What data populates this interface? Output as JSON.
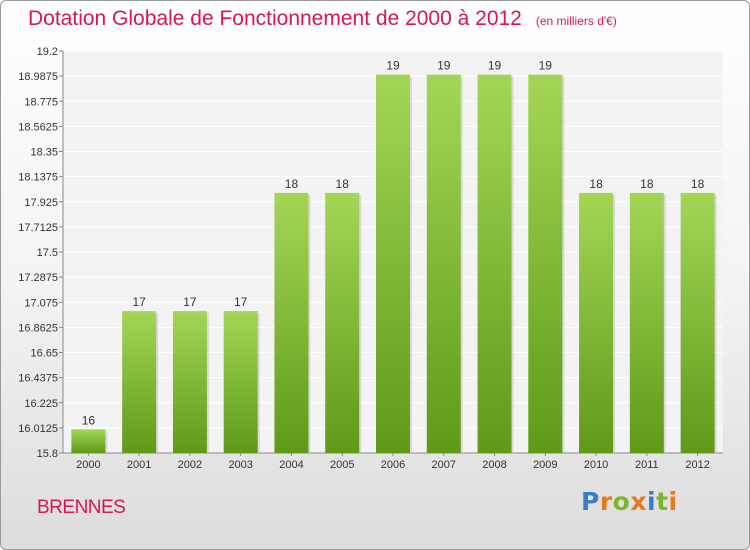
{
  "header": {
    "title": "Dotation Globale de Fonctionnement de 2000 à 2012",
    "unit": "(en milliers d'€)"
  },
  "footer": {
    "commune": "BRENNES",
    "logo": "Proxiti"
  },
  "colors": {
    "title": "#d6165c",
    "bar_light": "#a4d656",
    "bar_dark": "#5e9a18",
    "logo": [
      "#3b7dc4",
      "#e8791b",
      "#7ab72f",
      "#e8791b",
      "#3b7dc4",
      "#7ab72f",
      "#e8791b"
    ]
  },
  "chart_data": {
    "type": "bar",
    "title": "Dotation Globale de Fonctionnement de 2000 à 2012",
    "categories": [
      "2000",
      "2001",
      "2002",
      "2003",
      "2004",
      "2005",
      "2006",
      "2007",
      "2008",
      "2009",
      "2010",
      "2011",
      "2012"
    ],
    "values": [
      16,
      17,
      17,
      17,
      18,
      18,
      19,
      19,
      19,
      19,
      18,
      18,
      18
    ],
    "value_labels": [
      "16",
      "17",
      "17",
      "17",
      "18",
      "18",
      "19",
      "19",
      "19",
      "19",
      "18",
      "18",
      "18"
    ],
    "ylim": [
      15.8,
      19.2
    ],
    "yticks": [
      "15.8",
      "16.0125",
      "16.225",
      "16.4375",
      "16.65",
      "16.8625",
      "17.075",
      "17.2875",
      "17.5",
      "17.7125",
      "17.925",
      "18.1375",
      "18.35",
      "18.5625",
      "18.775",
      "18.9875",
      "19.2"
    ],
    "grid": true,
    "xlabel": "",
    "ylabel": ""
  }
}
